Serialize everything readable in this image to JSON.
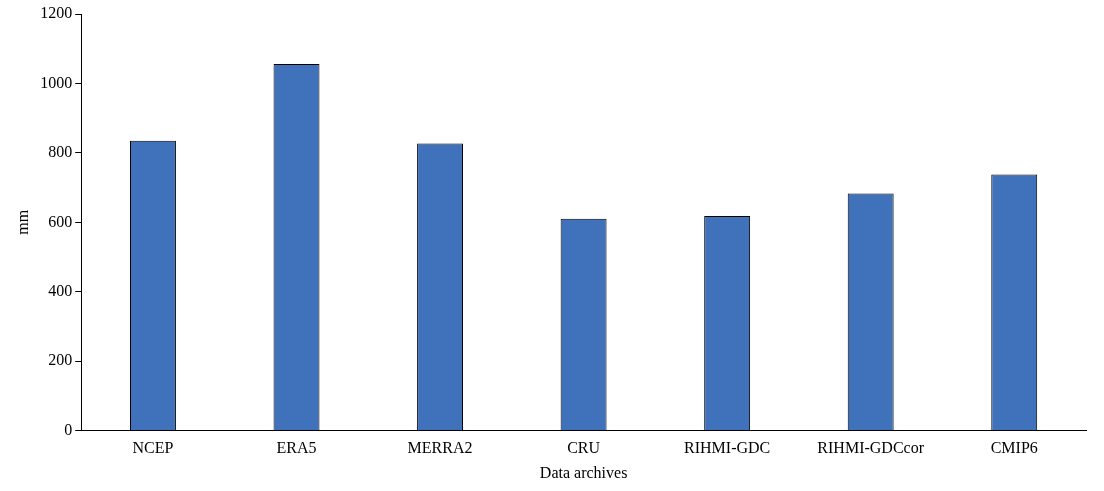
{
  "chart_data": {
    "type": "bar",
    "xlabel": "Data archives",
    "ylabel": "mm",
    "categories": [
      "NCEP",
      "ERA5",
      "MERRA2",
      "CRU",
      "RIHMI-GDC",
      "RIHMI-GDCcor",
      "CMIP6"
    ],
    "values": [
      835,
      1056,
      827,
      610,
      618,
      683,
      738
    ],
    "color": "#3f72bb",
    "ylim": [
      0,
      1200
    ],
    "yticks": [
      0,
      200,
      400,
      600,
      800,
      1000,
      1200
    ],
    "grid": false,
    "legend": false
  }
}
